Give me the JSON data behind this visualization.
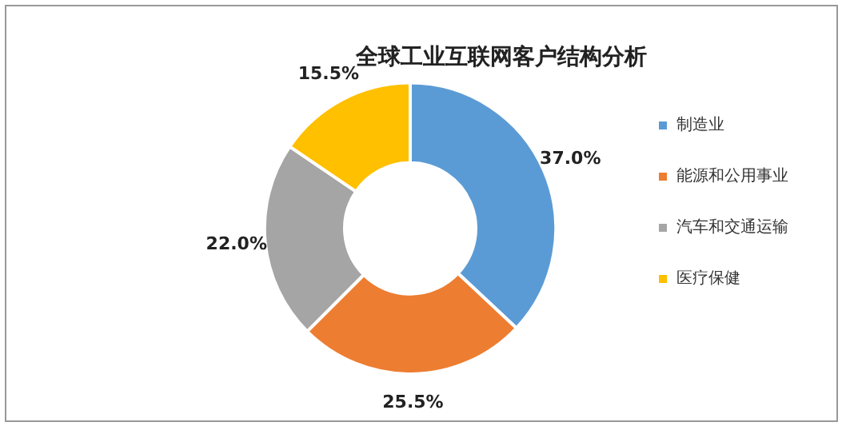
{
  "chart_data": {
    "type": "donut",
    "title": "全球工业互联网客户结构分析",
    "categories": [
      "制造业",
      "能源和公用事业",
      "汽车和交通运输",
      "医疗保健"
    ],
    "values": [
      37.0,
      25.5,
      22.0,
      15.5
    ],
    "colors": [
      "#5b9bd5",
      "#ed7d31",
      "#a5a5a5",
      "#ffc000"
    ],
    "value_labels": [
      "37.0%",
      "25.5%",
      "22.0%",
      "15.5%"
    ],
    "legend": "right"
  }
}
